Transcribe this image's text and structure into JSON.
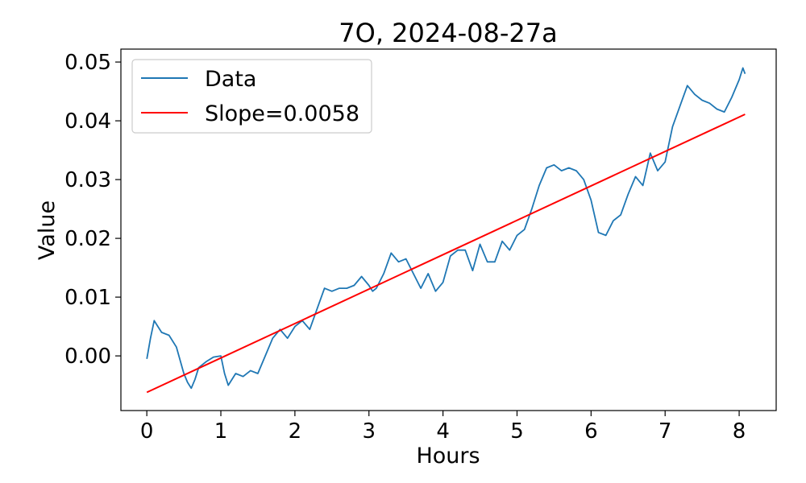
{
  "chart_data": {
    "type": "line",
    "title": "7O, 2024-08-27a",
    "xlabel": "Hours",
    "ylabel": "Value",
    "xlim": [
      -0.35,
      8.5
    ],
    "ylim": [
      -0.0093,
      0.0522
    ],
    "xticks": [
      0,
      1,
      2,
      3,
      4,
      5,
      6,
      7,
      8
    ],
    "xtick_labels": [
      "0",
      "1",
      "2",
      "3",
      "4",
      "5",
      "6",
      "7",
      "8"
    ],
    "yticks": [
      0.0,
      0.01,
      0.02,
      0.03,
      0.04,
      0.05
    ],
    "ytick_labels": [
      "0.00",
      "0.01",
      "0.02",
      "0.03",
      "0.04",
      "0.05"
    ],
    "grid": false,
    "legend_position": "upper-left",
    "series": [
      {
        "name": "Data",
        "color": "#1f77b4",
        "x": [
          0.0,
          0.05,
          0.1,
          0.15,
          0.2,
          0.3,
          0.4,
          0.5,
          0.55,
          0.6,
          0.65,
          0.7,
          0.8,
          0.9,
          1.0,
          1.05,
          1.1,
          1.2,
          1.3,
          1.4,
          1.5,
          1.6,
          1.7,
          1.8,
          1.9,
          2.0,
          2.1,
          2.2,
          2.3,
          2.4,
          2.5,
          2.6,
          2.7,
          2.8,
          2.9,
          3.0,
          3.05,
          3.1,
          3.2,
          3.3,
          3.4,
          3.5,
          3.6,
          3.7,
          3.8,
          3.9,
          4.0,
          4.1,
          4.2,
          4.3,
          4.4,
          4.5,
          4.6,
          4.7,
          4.8,
          4.9,
          5.0,
          5.1,
          5.2,
          5.3,
          5.4,
          5.5,
          5.6,
          5.7,
          5.8,
          5.9,
          6.0,
          6.1,
          6.2,
          6.3,
          6.4,
          6.5,
          6.6,
          6.7,
          6.8,
          6.9,
          7.0,
          7.1,
          7.2,
          7.3,
          7.4,
          7.5,
          7.6,
          7.7,
          7.8,
          7.9,
          8.0,
          8.05,
          8.08
        ],
        "y": [
          -0.0005,
          0.003,
          0.006,
          0.005,
          0.004,
          0.0035,
          0.0015,
          -0.003,
          -0.0045,
          -0.0055,
          -0.004,
          -0.002,
          -0.001,
          -0.0002,
          0.0,
          -0.003,
          -0.005,
          -0.003,
          -0.0035,
          -0.0025,
          -0.003,
          0.0,
          0.003,
          0.0045,
          0.003,
          0.005,
          0.006,
          0.0045,
          0.008,
          0.0115,
          0.011,
          0.0115,
          0.0115,
          0.012,
          0.0135,
          0.012,
          0.011,
          0.0115,
          0.014,
          0.0175,
          0.016,
          0.0165,
          0.014,
          0.0115,
          0.014,
          0.011,
          0.0125,
          0.017,
          0.018,
          0.018,
          0.0145,
          0.019,
          0.016,
          0.016,
          0.0195,
          0.018,
          0.0205,
          0.0215,
          0.025,
          0.029,
          0.032,
          0.0325,
          0.0315,
          0.032,
          0.0315,
          0.03,
          0.0265,
          0.021,
          0.0205,
          0.023,
          0.024,
          0.0275,
          0.0305,
          0.029,
          0.0345,
          0.0315,
          0.033,
          0.039,
          0.0425,
          0.046,
          0.0445,
          0.0435,
          0.043,
          0.042,
          0.0415,
          0.044,
          0.047,
          0.049,
          0.048
        ]
      },
      {
        "name": "Slope=0.0058",
        "color": "#ff0000",
        "x": [
          0.0,
          8.08
        ],
        "y": [
          -0.0062,
          0.0411
        ]
      }
    ]
  }
}
